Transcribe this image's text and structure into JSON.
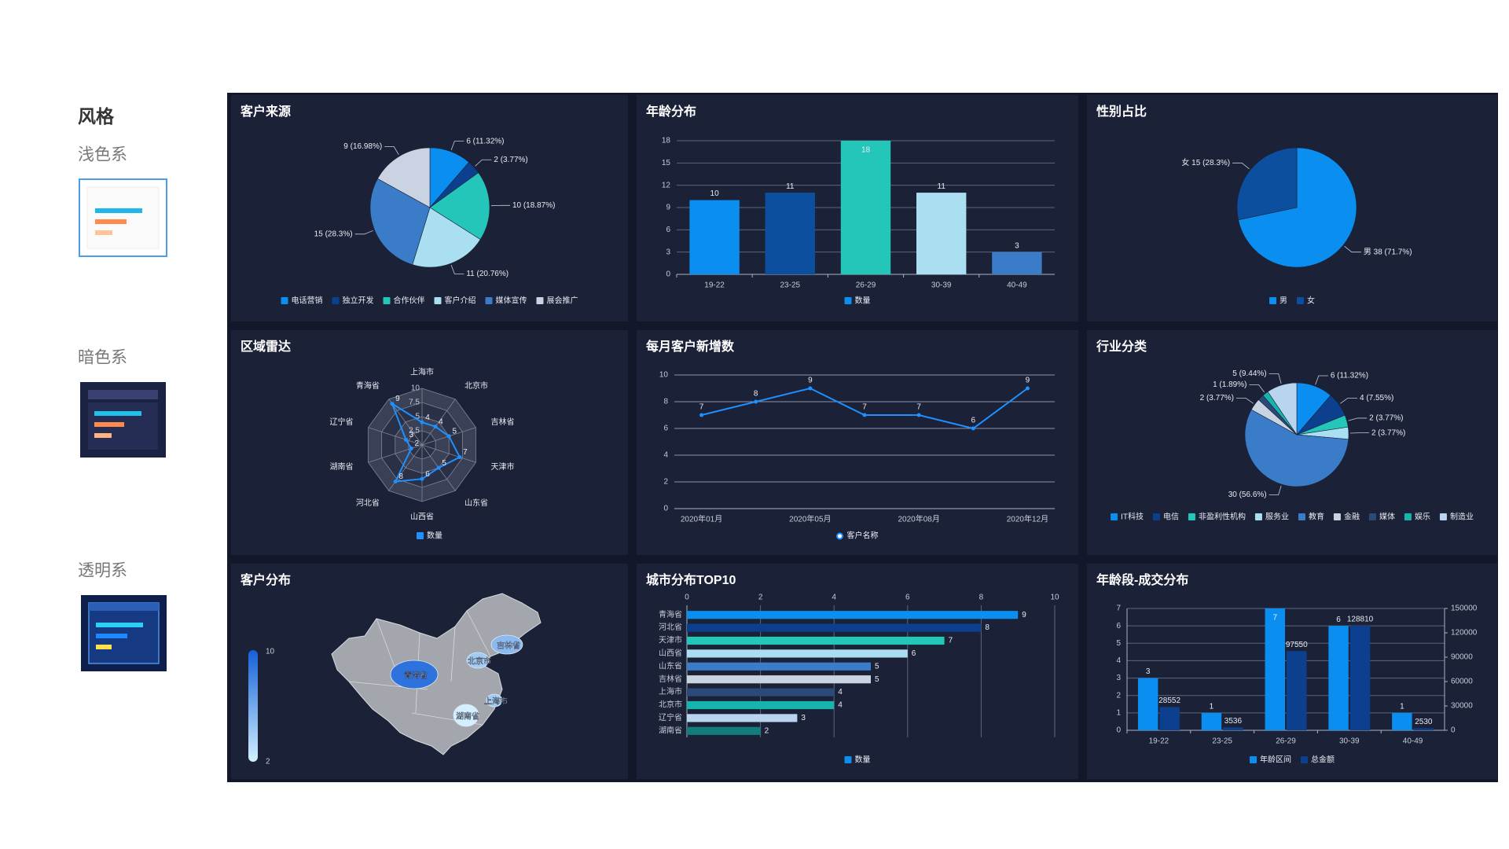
{
  "sidebar": {
    "heading": "风格",
    "options": [
      "浅色系",
      "暗色系",
      "透明系"
    ]
  },
  "chart_data": [
    {
      "type": "pie",
      "title": "客户来源",
      "categories": [
        "电话营销",
        "独立开发",
        "合作伙伴",
        "客户介绍",
        "媒体宣传",
        "展会推广"
      ],
      "values": [
        6,
        2,
        10,
        11,
        15,
        9
      ],
      "value_labels": [
        "6 (11.32%)",
        "2 (3.77%)",
        "10 (18.87%)",
        "11 (20.76%)",
        "15 (28.3%)",
        "9 (16.98%)"
      ],
      "colors": [
        "#0a8ff0",
        "#0d3f8f",
        "#24c6b9",
        "#a9dff0",
        "#3a7cc7",
        "#c9d3e2"
      ],
      "legend": "bottom"
    },
    {
      "type": "bar",
      "title": "年龄分布",
      "categories": [
        "19-22",
        "23-25",
        "26-29",
        "30-39",
        "40-49"
      ],
      "series": [
        {
          "name": "数量",
          "color": "#0a8ff0",
          "values": [
            10,
            11,
            18,
            11,
            3
          ]
        }
      ],
      "colors": [
        "#0a8ff0",
        "#0d4f9f",
        "#24c6b9",
        "#a9dff0",
        "#3a7cc7"
      ],
      "ylim": [
        0,
        18
      ],
      "yticks": [
        0,
        3,
        6,
        9,
        12,
        15,
        18
      ],
      "grid": true,
      "legend": "bottom"
    },
    {
      "type": "pie",
      "title": "性别占比",
      "categories": [
        "男",
        "女"
      ],
      "values": [
        38,
        15
      ],
      "value_labels": [
        "男 38 (71.7%)",
        "女 15 (28.3%)"
      ],
      "colors": [
        "#0a8ff0",
        "#0d4f9f"
      ],
      "legend": "bottom"
    },
    {
      "type": "radar",
      "title": "区域雷达",
      "categories": [
        "上海市",
        "北京市",
        "吉林省",
        "天津市",
        "山东省",
        "山西省",
        "河北省",
        "湖南省",
        "辽宁省",
        "青海省"
      ],
      "series": [
        {
          "name": "数量",
          "color": "#1e90ff",
          "values": [
            4,
            4,
            5,
            7,
            5,
            6,
            8,
            2,
            3,
            9
          ]
        }
      ],
      "rlim": [
        0,
        10
      ],
      "rticks": [
        2.5,
        5,
        7.5,
        10
      ],
      "legend": "bottom"
    },
    {
      "type": "line",
      "title": "每月客户新增数",
      "categories": [
        "2020年01月",
        null,
        "2020年05月",
        null,
        "2020年08月",
        null,
        "2020年12月"
      ],
      "series": [
        {
          "name": "客户名称",
          "color": "#1e90ff",
          "values": [
            7,
            8,
            9,
            7,
            7,
            6,
            9
          ]
        }
      ],
      "ylim": [
        0,
        10
      ],
      "yticks": [
        0,
        2,
        4,
        6,
        8,
        10
      ],
      "grid": true,
      "legend": "bottom"
    },
    {
      "type": "pie",
      "title": "行业分类",
      "categories": [
        "IT科技",
        "电信",
        "非盈利性机构",
        "服务业",
        "教育",
        "金融",
        "媒体",
        "娱乐",
        "制造业"
      ],
      "values": [
        6,
        4,
        2,
        2,
        30,
        2,
        1,
        1,
        5
      ],
      "value_labels": [
        "6 (11.32%)",
        "4 (7.55%)",
        "2 (3.77%)",
        "2 (3.77%)",
        "30 (56.6%)",
        "2 (3.77%)",
        null,
        "1 (1.89%)",
        "5 (9.44%)"
      ],
      "colors": [
        "#0a8ff0",
        "#0d3f8f",
        "#24c6b9",
        "#a9dff0",
        "#3a7cc7",
        "#c9d3e2",
        "#2b4a78",
        "#17b3ad",
        "#b8d4ee"
      ],
      "legend": "bottom"
    },
    {
      "type": "map",
      "title": "客户分布",
      "regions": [
        "青海省",
        "北京市",
        "吉林省",
        "上海市",
        "湖南省"
      ],
      "values": [
        9,
        4,
        5,
        4,
        2
      ],
      "visual_map": {
        "min": 2,
        "max": 10,
        "colors": [
          "#d2f0ff",
          "#1560d8"
        ]
      }
    },
    {
      "type": "bar",
      "orientation": "horizontal",
      "title": "城市分布TOP10",
      "categories": [
        "青海省",
        "河北省",
        "天津市",
        "山西省",
        "山东省",
        "吉林省",
        "上海市",
        "北京市",
        "辽宁省",
        "湖南省"
      ],
      "series": [
        {
          "name": "数量",
          "color": "#0a8ff0",
          "values": [
            9,
            8,
            7,
            6,
            5,
            5,
            4,
            4,
            3,
            2
          ]
        }
      ],
      "colors": [
        "#0a8ff0",
        "#0d3f8f",
        "#24c6b9",
        "#a9dff0",
        "#3a7cc7",
        "#c9d3e2",
        "#2b4a78",
        "#17b3ad",
        "#b8d4ee",
        "#127d7b"
      ],
      "xlim": [
        0,
        10
      ],
      "xticks": [
        0,
        2,
        4,
        6,
        8,
        10
      ],
      "grid": true,
      "legend": "bottom"
    },
    {
      "type": "bar",
      "title": "年龄段-成交分布",
      "categories": [
        "19-22",
        "23-25",
        "26-29",
        "30-39",
        "40-49"
      ],
      "series": [
        {
          "name": "年龄区间",
          "color": "#0a8ff0",
          "values": [
            3,
            1,
            7,
            6,
            1
          ]
        },
        {
          "name": "总金额",
          "color": "#0d3f8f",
          "values": [
            28552,
            3536,
            97550,
            128810,
            2530
          ],
          "axis": "y2"
        }
      ],
      "ylim": [
        0,
        7
      ],
      "yticks": [
        0,
        1,
        2,
        3,
        4,
        5,
        6,
        7
      ],
      "y2lim": [
        0,
        150000
      ],
      "y2ticks": [
        0,
        30000,
        60000,
        90000,
        120000,
        150000
      ],
      "grid": true,
      "legend": "bottom"
    }
  ]
}
